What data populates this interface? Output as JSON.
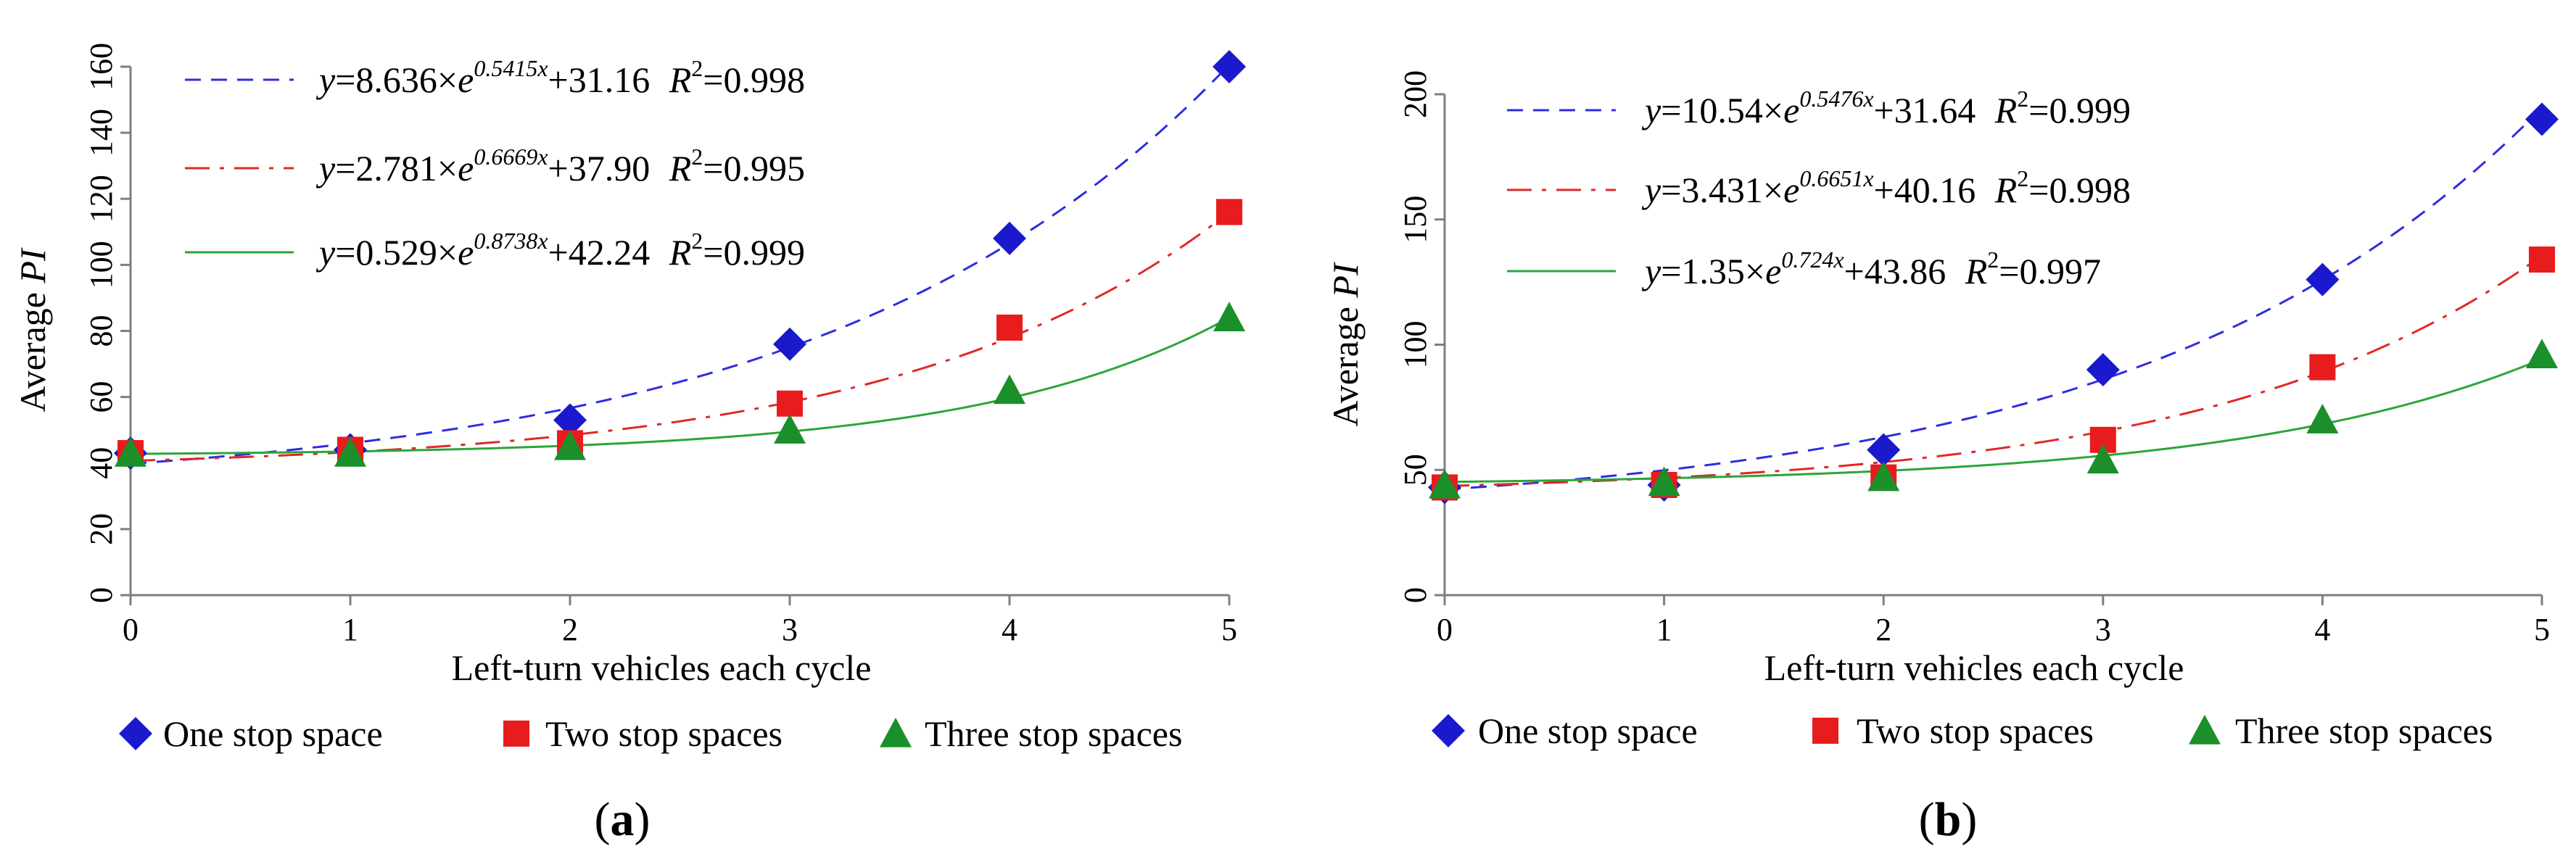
{
  "colors": {
    "one": "#1a1acc",
    "two": "#e81c1c",
    "three": "#1a8f2a",
    "fit_one": "#2d2de0",
    "fit_two": "#e02828",
    "fit_three": "#2aa63a",
    "axis": "#7f7f7f"
  },
  "chart_data": [
    {
      "type": "scatter",
      "panel": "(a)",
      "xlabel": "Left-turn vehicles each cycle",
      "ylabel_prefix": "Average ",
      "ylabel_italic": "PI",
      "xlim": [
        0,
        5
      ],
      "ylim": [
        0,
        160
      ],
      "x_ticks": [
        0,
        1,
        2,
        3,
        4,
        5
      ],
      "y_ticks": [
        0,
        20,
        40,
        60,
        80,
        100,
        120,
        140,
        160
      ],
      "grid": false,
      "series": [
        {
          "name": "One stop space",
          "marker": "diamond",
          "x": [
            0,
            1,
            2,
            3,
            4,
            5
          ],
          "y": [
            43,
            44,
            53,
            76,
            108,
            160
          ],
          "fit": {
            "a": 8.636,
            "b": 0.5415,
            "c": 31.16,
            "style": "dashed",
            "coef": "8.636",
            "exp": "0.5415",
            "const": "31.16",
            "r2": "0.998"
          }
        },
        {
          "name": "Two stop spaces",
          "marker": "square",
          "x": [
            0,
            1,
            2,
            3,
            4,
            5
          ],
          "y": [
            43,
            44,
            46,
            58,
            81,
            116
          ],
          "fit": {
            "a": 2.781,
            "b": 0.6669,
            "c": 37.9,
            "style": "dashdot",
            "coef": "2.781",
            "exp": "0.6669",
            "const": "37.90",
            "r2": "0.995"
          }
        },
        {
          "name": "Three stop spaces",
          "marker": "triangle",
          "x": [
            0,
            1,
            2,
            3,
            4,
            5
          ],
          "y": [
            43,
            43,
            45,
            50,
            62,
            84
          ],
          "fit": {
            "a": 0.529,
            "b": 0.8738,
            "c": 42.24,
            "style": "solid",
            "coef": "0.529",
            "exp": "0.8738",
            "const": "42.24",
            "r2": "0.999"
          }
        }
      ]
    },
    {
      "type": "scatter",
      "panel": "(b)",
      "xlabel": "Left-turn vehicles each cycle",
      "ylabel_prefix": "Average ",
      "ylabel_italic": "PI",
      "xlim": [
        0,
        5
      ],
      "ylim": [
        0,
        200
      ],
      "x_ticks": [
        0,
        1,
        2,
        3,
        4,
        5
      ],
      "y_ticks": [
        0,
        50,
        100,
        150,
        200
      ],
      "grid": false,
      "series": [
        {
          "name": "One stop space",
          "marker": "diamond",
          "x": [
            0,
            1,
            2,
            3,
            4,
            5
          ],
          "y": [
            43,
            44,
            58,
            90,
            126,
            190
          ],
          "fit": {
            "a": 10.54,
            "b": 0.5476,
            "c": 31.64,
            "style": "dashed",
            "coef": "10.54",
            "exp": "0.5476",
            "const": "31.64",
            "r2": "0.999"
          }
        },
        {
          "name": "Two stop spaces",
          "marker": "square",
          "x": [
            0,
            1,
            2,
            3,
            4,
            5
          ],
          "y": [
            43,
            44,
            47,
            62,
            91,
            134
          ],
          "fit": {
            "a": 3.431,
            "b": 0.6651,
            "c": 40.16,
            "style": "dashdot",
            "coef": "3.431",
            "exp": "0.6651",
            "const": "40.16",
            "r2": "0.998"
          }
        },
        {
          "name": "Three stop spaces",
          "marker": "triangle",
          "x": [
            0,
            1,
            2,
            3,
            4,
            5
          ],
          "y": [
            44,
            45,
            47,
            54,
            70,
            96
          ],
          "fit": {
            "a": 1.35,
            "b": 0.724,
            "c": 43.86,
            "style": "solid",
            "coef": "1.35",
            "exp": "0.724",
            "const": "43.86",
            "r2": "0.997"
          }
        }
      ]
    }
  ]
}
